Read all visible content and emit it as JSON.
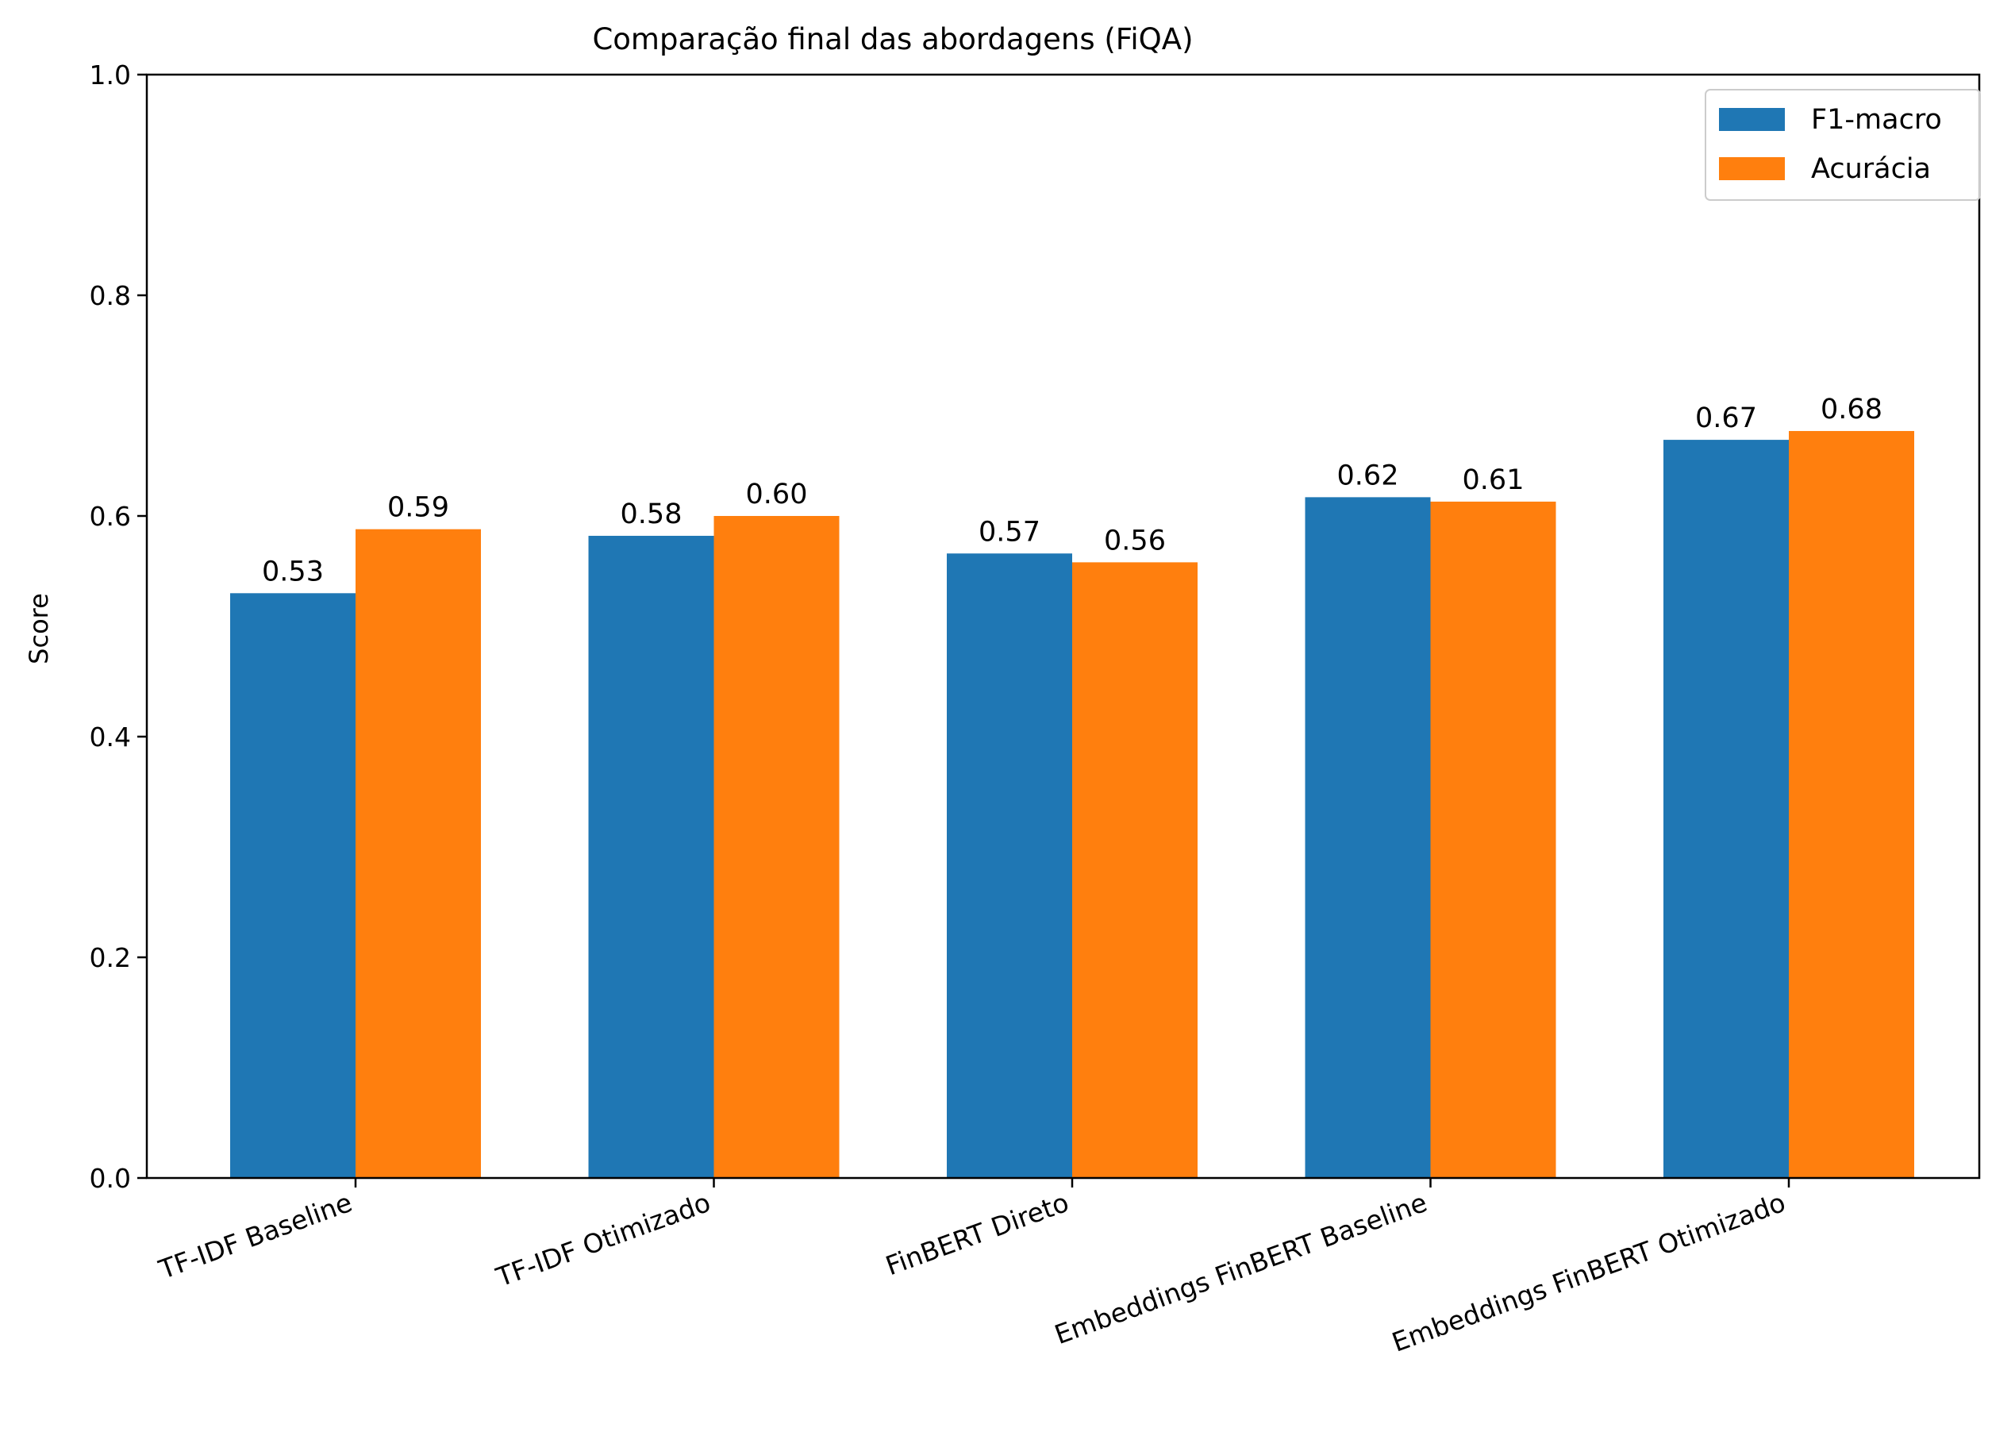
{
  "chart_data": {
    "type": "bar",
    "title": "Comparação final das abordagens (FiQA)",
    "xlabel": "",
    "ylabel": "Score",
    "ylim": [
      0,
      1.0
    ],
    "yticks": [
      "0.0",
      "0.2",
      "0.4",
      "0.6",
      "0.8",
      "1.0"
    ],
    "grid": false,
    "legend_position": "top-right",
    "categories": [
      "TF-IDF Baseline",
      "TF-IDF Otimizado",
      "FinBERT Direto",
      "Embeddings FinBERT Baseline",
      "Embeddings FinBERT Otimizado"
    ],
    "series": [
      {
        "name": "F1-macro",
        "color": "#1f77b4",
        "values": [
          0.53,
          0.582,
          0.566,
          0.617,
          0.669
        ],
        "labels": [
          "0.53",
          "0.58",
          "0.57",
          "0.62",
          "0.67"
        ]
      },
      {
        "name": "Acurácia",
        "color": "#ff7f0e",
        "values": [
          0.588,
          0.6,
          0.558,
          0.613,
          0.677
        ],
        "labels": [
          "0.59",
          "0.60",
          "0.56",
          "0.61",
          "0.68"
        ]
      }
    ]
  }
}
